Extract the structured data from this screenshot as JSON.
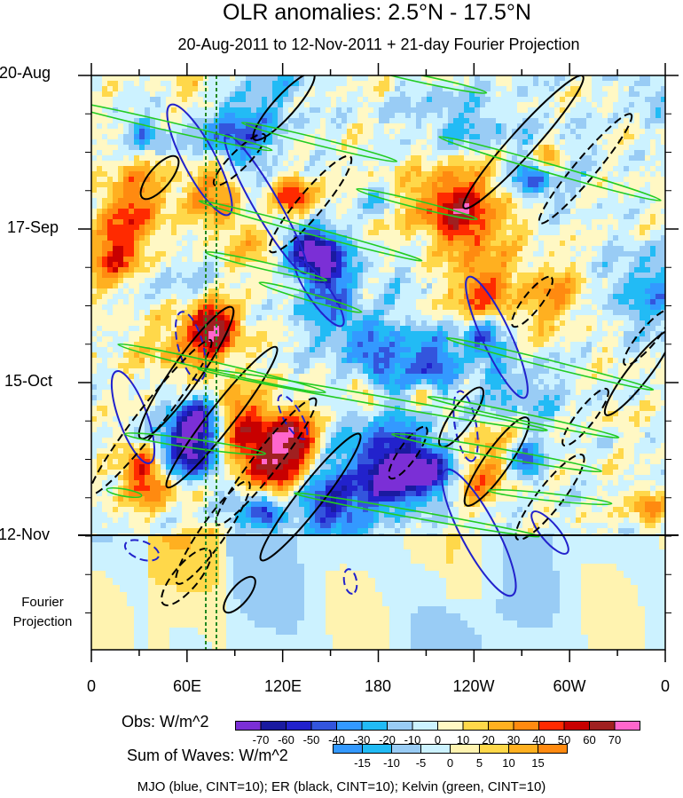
{
  "chart_data": {
    "type": "heatmap",
    "title": "OLR anomalies: 2.5°N - 17.5°N",
    "subtitle": "20-Aug-2011 to 12-Nov-2011 + 21-day Fourier Projection",
    "x_ticks": [
      "0",
      "60E",
      "120E",
      "180",
      "120W",
      "60W",
      "0"
    ],
    "x_range_deg_east": [
      0,
      360
    ],
    "y_ticks": [
      "20-Aug",
      "17-Sep",
      "15-Oct",
      "12-Nov"
    ],
    "projection_label": "Fourier Projection",
    "obs_colorbar": {
      "label": "Obs: W/m^2",
      "levels": [
        "-70",
        "-60",
        "-50",
        "-40",
        "-30",
        "-20",
        "-10",
        "0",
        "10",
        "20",
        "30",
        "40",
        "50",
        "60",
        "70"
      ],
      "colors": [
        "#7b2fd6",
        "#1a1aa0",
        "#2222cc",
        "#3355dd",
        "#3399ff",
        "#22bbf5",
        "#99ccf5",
        "#ccf2ff",
        "#fff8c4",
        "#ffd84a",
        "#ffb020",
        "#ff8a10",
        "#ff2a00",
        "#c80000",
        "#a02020",
        "#ff66cc"
      ]
    },
    "waves_colorbar": {
      "label": "Sum of Waves: W/m^2",
      "levels": [
        "-15",
        "-10",
        "-5",
        "0",
        "5",
        "10",
        "15"
      ],
      "colors": [
        "#3399ff",
        "#22bbf5",
        "#99ccf5",
        "#ccf2ff",
        "#fff3b0",
        "#ffd84a",
        "#ffb020",
        "#ff8a10"
      ]
    },
    "footer": "MJO (blue, CINT=10); ER (black, CINT=10); Kelvin (green, CINT=10)",
    "contours": {
      "mjo_color": "#2222cc",
      "er_color": "#000000",
      "kelvin_color": "#22cc22",
      "reference_line_color": "#228822"
    }
  }
}
